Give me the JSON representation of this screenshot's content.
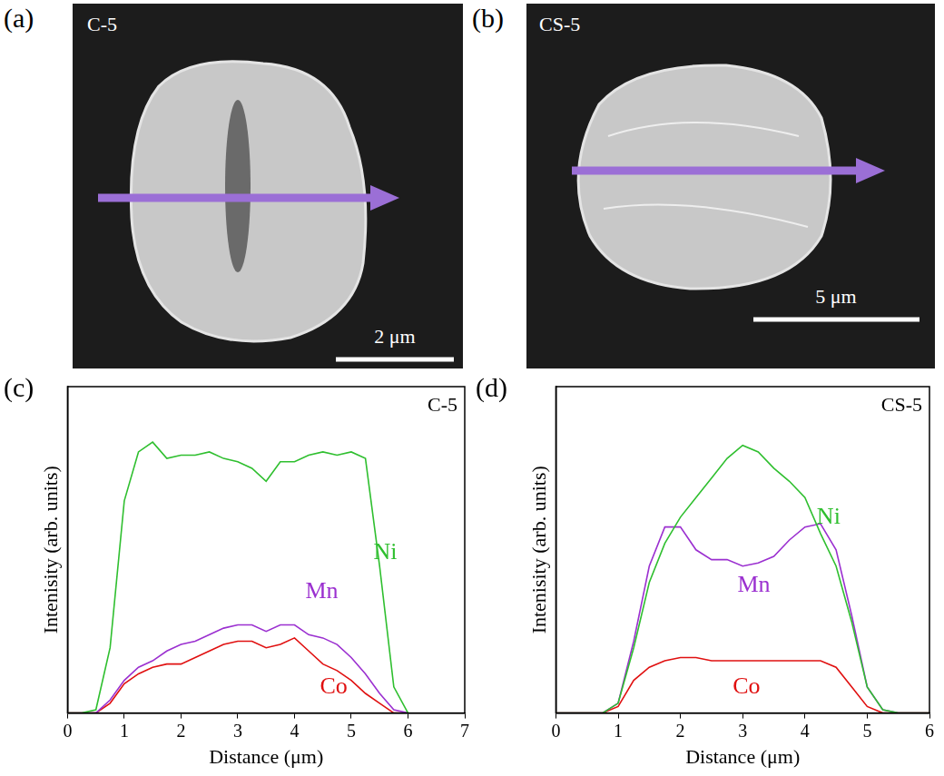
{
  "images": [
    {
      "panel": "(a)",
      "title": "C-5",
      "scale_bar": "2 μm"
    },
    {
      "panel": "(b)",
      "title": "CS-5",
      "scale_bar": "5 μm"
    }
  ],
  "chart_data": [
    {
      "panel": "(c)",
      "type": "line",
      "title": "C-5",
      "x_label": "Distance (μm)",
      "y_label": "Intenisity (arb. units)",
      "x": [
        0,
        0.25,
        0.5,
        0.75,
        1,
        1.25,
        1.5,
        1.75,
        2,
        2.25,
        2.5,
        2.75,
        3,
        3.25,
        3.5,
        3.75,
        4,
        4.25,
        4.5,
        4.75,
        5,
        5.25,
        5.5,
        5.75,
        6
      ],
      "xlim": [
        0,
        7
      ],
      "xticks": [
        0,
        1,
        2,
        3,
        4,
        5,
        6,
        7
      ],
      "ylim": [
        0,
        100
      ],
      "tick_labels": "x",
      "grid": false,
      "series": [
        {
          "name": "Ni",
          "color": "#2fbf2f",
          "values": [
            0,
            0,
            1,
            20,
            65,
            80,
            83,
            78,
            79,
            79,
            80,
            78,
            77,
            75,
            71,
            77,
            77,
            79,
            80,
            79,
            80,
            78,
            45,
            8,
            0
          ]
        },
        {
          "name": "Mn",
          "color": "#9b30d0",
          "values": [
            0,
            0,
            0,
            4,
            10,
            14,
            16,
            19,
            21,
            22,
            24,
            26,
            27,
            27,
            25,
            27,
            27,
            24,
            23,
            21,
            17,
            12,
            6,
            1,
            0
          ]
        },
        {
          "name": "Co",
          "color": "#e01010",
          "values": [
            0,
            0,
            0,
            3,
            9,
            12,
            14,
            15,
            15,
            17,
            19,
            21,
            22,
            22,
            20,
            21,
            23,
            19,
            15,
            13,
            10,
            6,
            3,
            0,
            0
          ]
        }
      ]
    },
    {
      "panel": "(d)",
      "type": "line",
      "title": "CS-5",
      "x_label": "Distance (μm)",
      "y_label": "Intenisity (arb. units)",
      "x": [
        0,
        0.25,
        0.5,
        0.75,
        1,
        1.25,
        1.5,
        1.75,
        2,
        2.25,
        2.5,
        2.75,
        3,
        3.25,
        3.5,
        3.75,
        4,
        4.25,
        4.5,
        4.75,
        5,
        5.25,
        5.5,
        5.75,
        6
      ],
      "xlim": [
        0,
        6
      ],
      "xticks": [
        0,
        1,
        2,
        3,
        4,
        5,
        6
      ],
      "ylim": [
        0,
        100
      ],
      "tick_labels": "x",
      "grid": false,
      "series": [
        {
          "name": "Ni",
          "color": "#2fbf2f",
          "values": [
            0,
            0,
            0,
            0,
            3,
            20,
            40,
            52,
            60,
            66,
            72,
            78,
            82,
            80,
            75,
            71,
            66,
            55,
            45,
            28,
            8,
            1,
            0,
            0,
            0
          ]
        },
        {
          "name": "Mn",
          "color": "#9b30d0",
          "values": [
            0,
            0,
            0,
            0,
            3,
            22,
            45,
            57,
            57,
            50,
            47,
            47,
            45,
            46,
            48,
            53,
            57,
            58,
            50,
            30,
            8,
            1,
            0,
            0,
            0
          ]
        },
        {
          "name": "Co",
          "color": "#e01010",
          "values": [
            0,
            0,
            0,
            0,
            2,
            10,
            14,
            16,
            17,
            17,
            16,
            16,
            16,
            16,
            16,
            16,
            16,
            16,
            14,
            8,
            2,
            0,
            0,
            0,
            0
          ]
        }
      ]
    }
  ]
}
